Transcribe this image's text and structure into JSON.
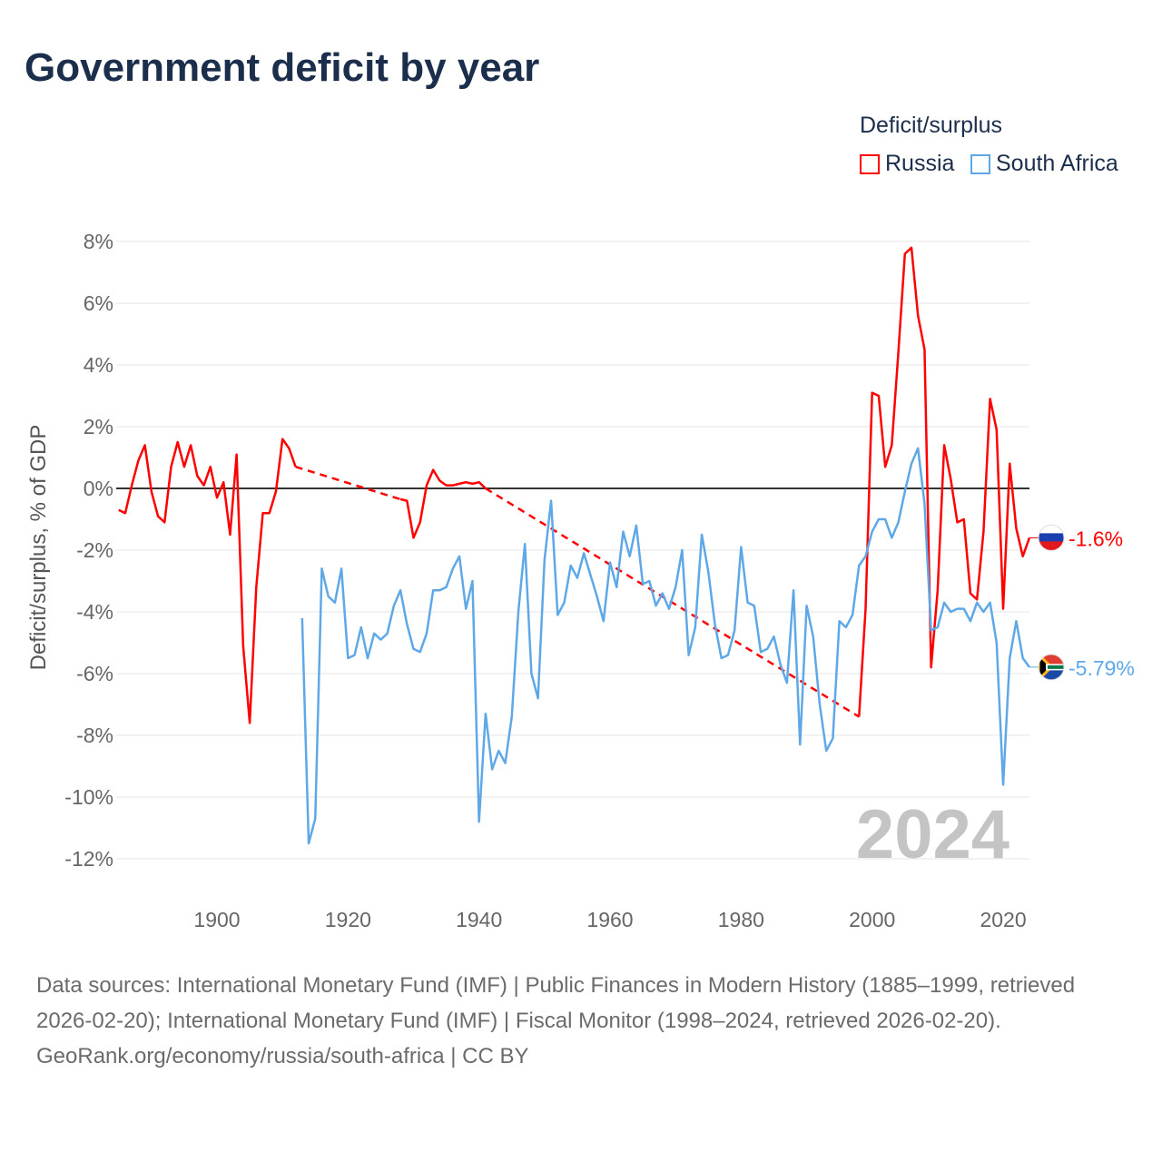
{
  "title": "Government deficit by year",
  "legend": {
    "title": "Deficit/surplus",
    "items": [
      {
        "name": "Russia",
        "color": "#ff0000"
      },
      {
        "name": "South Africa",
        "color": "#5fa8e8"
      }
    ]
  },
  "footer": {
    "sources": "Data sources: International Monetary Fund (IMF) | Public Finances in Modern History (1885–1999, retrieved 2026-02-20); International Monetary Fund (IMF) | Fiscal Monitor (1998–2024, retrieved 2026-02-20).",
    "credit": "GeoRank.org/economy/russia/south-africa | CC BY"
  },
  "chart_data": {
    "type": "line",
    "title": "Government deficit by year",
    "ylabel": "Deficit/surplus, % of GDP",
    "xlabel": "",
    "year_label": "2024",
    "xlim": [
      1885,
      2024
    ],
    "ylim": [
      -13,
      8.5
    ],
    "xticks": [
      1900,
      1920,
      1940,
      1960,
      1980,
      2000,
      2020
    ],
    "yticks": [
      8,
      6,
      4,
      2,
      0,
      -2,
      -4,
      -6,
      -8,
      -10,
      -12
    ],
    "grid": true,
    "legend_position": "top-right",
    "series": [
      {
        "name": "Russia",
        "color": "#ff0000",
        "end_label": "-1.6%",
        "points": [
          [
            1885,
            -0.7
          ],
          [
            1886,
            -0.8
          ],
          [
            1887,
            0.1
          ],
          [
            1888,
            0.9
          ],
          [
            1889,
            1.4
          ],
          [
            1890,
            -0.1
          ],
          [
            1891,
            -0.9
          ],
          [
            1892,
            -1.1
          ],
          [
            1893,
            0.7
          ],
          [
            1894,
            1.5
          ],
          [
            1895,
            0.7
          ],
          [
            1896,
            1.4
          ],
          [
            1897,
            0.4
          ],
          [
            1898,
            0.1
          ],
          [
            1899,
            0.7
          ],
          [
            1900,
            -0.3
          ],
          [
            1901,
            0.2
          ],
          [
            1902,
            -1.5
          ],
          [
            1903,
            1.1
          ],
          [
            1904,
            -5.1
          ],
          [
            1905,
            -7.6
          ],
          [
            1906,
            -3.2
          ],
          [
            1907,
            -0.8
          ],
          [
            1908,
            -0.8
          ],
          [
            1909,
            -0.1
          ],
          [
            1910,
            1.6
          ],
          [
            1911,
            1.3
          ],
          [
            1912,
            0.7
          ],
          null,
          [
            1928,
            -0.35
          ],
          [
            1929,
            -0.4
          ],
          [
            1930,
            -1.6
          ],
          [
            1931,
            -1.1
          ],
          [
            1932,
            0.1
          ],
          [
            1933,
            0.6
          ],
          [
            1934,
            0.25
          ],
          [
            1935,
            0.1
          ],
          [
            1936,
            0.1
          ],
          [
            1937,
            0.15
          ],
          [
            1938,
            0.2
          ],
          [
            1939,
            0.15
          ],
          [
            1940,
            0.2
          ],
          [
            1941,
            0.0
          ],
          null,
          [
            1998,
            -7.4
          ],
          [
            1999,
            -3.9
          ],
          [
            2000,
            3.1
          ],
          [
            2001,
            3.0
          ],
          [
            2002,
            0.7
          ],
          [
            2003,
            1.4
          ],
          [
            2004,
            4.4
          ],
          [
            2005,
            7.6
          ],
          [
            2006,
            7.8
          ],
          [
            2007,
            5.6
          ],
          [
            2008,
            4.5
          ],
          [
            2009,
            -5.8
          ],
          [
            2010,
            -3.3
          ],
          [
            2011,
            1.4
          ],
          [
            2012,
            0.3
          ],
          [
            2013,
            -1.1
          ],
          [
            2014,
            -1.0
          ],
          [
            2015,
            -3.4
          ],
          [
            2016,
            -3.6
          ],
          [
            2017,
            -1.4
          ],
          [
            2018,
            2.9
          ],
          [
            2019,
            1.9
          ],
          [
            2020,
            -3.9
          ],
          [
            2021,
            0.8
          ],
          [
            2022,
            -1.3
          ],
          [
            2023,
            -2.2
          ],
          [
            2024,
            -1.6
          ]
        ]
      },
      {
        "name": "South Africa",
        "color": "#5fa8e8",
        "end_label": "-5.79%",
        "points": [
          [
            1913,
            -4.2
          ],
          [
            1914,
            -11.5
          ],
          [
            1915,
            -10.7
          ],
          [
            1916,
            -2.6
          ],
          [
            1917,
            -3.5
          ],
          [
            1918,
            -3.7
          ],
          [
            1919,
            -2.6
          ],
          [
            1920,
            -5.5
          ],
          [
            1921,
            -5.4
          ],
          [
            1922,
            -4.5
          ],
          [
            1923,
            -5.5
          ],
          [
            1924,
            -4.7
          ],
          [
            1925,
            -4.9
          ],
          [
            1926,
            -4.7
          ],
          [
            1927,
            -3.8
          ],
          [
            1928,
            -3.3
          ],
          [
            1929,
            -4.4
          ],
          [
            1930,
            -5.2
          ],
          [
            1931,
            -5.3
          ],
          [
            1932,
            -4.7
          ],
          [
            1933,
            -3.3
          ],
          [
            1934,
            -3.3
          ],
          [
            1935,
            -3.2
          ],
          [
            1936,
            -2.6
          ],
          [
            1937,
            -2.2
          ],
          [
            1938,
            -3.9
          ],
          [
            1939,
            -3.0
          ],
          [
            1940,
            -10.8
          ],
          [
            1941,
            -7.3
          ],
          [
            1942,
            -9.1
          ],
          [
            1943,
            -8.5
          ],
          [
            1944,
            -8.9
          ],
          [
            1945,
            -7.4
          ],
          [
            1946,
            -4.0
          ],
          [
            1947,
            -1.8
          ],
          [
            1948,
            -6.0
          ],
          [
            1949,
            -6.8
          ],
          [
            1950,
            -2.3
          ],
          [
            1951,
            -0.4
          ],
          [
            1952,
            -4.1
          ],
          [
            1953,
            -3.7
          ],
          [
            1954,
            -2.5
          ],
          [
            1955,
            -2.9
          ],
          [
            1956,
            -2.1
          ],
          [
            1957,
            -2.8
          ],
          [
            1958,
            -3.5
          ],
          [
            1959,
            -4.3
          ],
          [
            1960,
            -2.4
          ],
          [
            1961,
            -3.2
          ],
          [
            1962,
            -1.4
          ],
          [
            1963,
            -2.2
          ],
          [
            1964,
            -1.2
          ],
          [
            1965,
            -3.1
          ],
          [
            1966,
            -3.0
          ],
          [
            1967,
            -3.8
          ],
          [
            1968,
            -3.4
          ],
          [
            1969,
            -3.9
          ],
          [
            1970,
            -3.2
          ],
          [
            1971,
            -2.0
          ],
          [
            1972,
            -5.4
          ],
          [
            1973,
            -4.5
          ],
          [
            1974,
            -1.5
          ],
          [
            1975,
            -2.7
          ],
          [
            1976,
            -4.4
          ],
          [
            1977,
            -5.5
          ],
          [
            1978,
            -5.4
          ],
          [
            1979,
            -4.6
          ],
          [
            1980,
            -1.9
          ],
          [
            1981,
            -3.7
          ],
          [
            1982,
            -3.8
          ],
          [
            1983,
            -5.3
          ],
          [
            1984,
            -5.2
          ],
          [
            1985,
            -4.8
          ],
          [
            1986,
            -5.7
          ],
          [
            1987,
            -6.3
          ],
          [
            1988,
            -3.3
          ],
          [
            1989,
            -8.3
          ],
          [
            1990,
            -3.8
          ],
          [
            1991,
            -4.8
          ],
          [
            1992,
            -7.0
          ],
          [
            1993,
            -8.5
          ],
          [
            1994,
            -8.1
          ],
          [
            1995,
            -4.3
          ],
          [
            1996,
            -4.5
          ],
          [
            1997,
            -4.1
          ],
          [
            1998,
            -2.5
          ],
          [
            1999,
            -2.2
          ],
          [
            2000,
            -1.4
          ],
          [
            2001,
            -1.0
          ],
          [
            2002,
            -1.0
          ],
          [
            2003,
            -1.6
          ],
          [
            2004,
            -1.1
          ],
          [
            2005,
            -0.1
          ],
          [
            2006,
            0.8
          ],
          [
            2007,
            1.3
          ],
          [
            2008,
            -0.5
          ],
          [
            2009,
            -4.6
          ],
          [
            2010,
            -4.5
          ],
          [
            2011,
            -3.7
          ],
          [
            2012,
            -4.0
          ],
          [
            2013,
            -3.9
          ],
          [
            2014,
            -3.9
          ],
          [
            2015,
            -4.3
          ],
          [
            2016,
            -3.7
          ],
          [
            2017,
            -4.0
          ],
          [
            2018,
            -3.7
          ],
          [
            2019,
            -5.0
          ],
          [
            2020,
            -9.6
          ],
          [
            2021,
            -5.5
          ],
          [
            2022,
            -4.3
          ],
          [
            2023,
            -5.5
          ],
          [
            2024,
            -5.79
          ]
        ]
      }
    ]
  }
}
